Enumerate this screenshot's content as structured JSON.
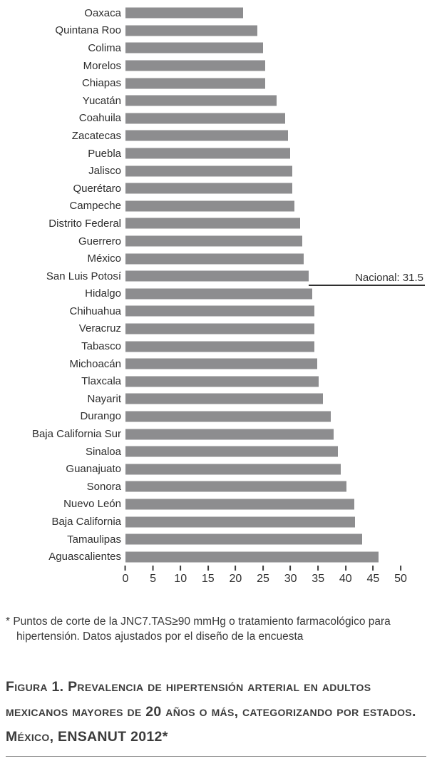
{
  "chart_data": {
    "type": "bar",
    "orientation": "horizontal",
    "title": "",
    "xlabel": "",
    "ylabel": "",
    "xlim": [
      0,
      50
    ],
    "x_ticks": [
      0,
      5,
      10,
      15,
      20,
      25,
      30,
      35,
      40,
      45,
      50
    ],
    "bar_color": "#8d8d8f",
    "grid": false,
    "legend": false,
    "categories": [
      "Oaxaca",
      "Quintana Roo",
      "Colima",
      "Morelos",
      "Chiapas",
      "Yucatán",
      "Coahuila",
      "Zacatecas",
      "Puebla",
      "Jalisco",
      "Querétaro",
      "Campeche",
      "Distrito Federal",
      "Guerrero",
      "México",
      "San Luis Potosí",
      "Hidalgo",
      "Chihuahua",
      "Veracruz",
      "Tabasco",
      "Michoacán",
      "Tlaxcala",
      "Nayarit",
      "Durango",
      "Baja California Sur",
      "Sinaloa",
      "Guanajuato",
      "Sonora",
      "Nuevo León",
      "Baja California",
      "Tamaulipas",
      "Aguascalientes"
    ],
    "values": [
      20.2,
      22.7,
      23.6,
      24.0,
      24.0,
      26.0,
      27.4,
      28.0,
      28.3,
      28.7,
      28.7,
      29.0,
      30.0,
      30.4,
      30.6,
      31.5,
      32.1,
      32.5,
      32.5,
      32.5,
      33.0,
      33.2,
      34.0,
      35.3,
      35.8,
      36.5,
      37.0,
      38.0,
      39.3,
      39.5,
      40.7,
      43.5
    ],
    "reference_line": {
      "label": "Nacional: 31.5",
      "value": 31.5,
      "after_category": "San Luis Potosí"
    }
  },
  "footnote": {
    "text": "* Puntos de corte de la JNC7.TAS≥90 mmHg o tratamiento farmacológico para hipertensión. Datos ajustados por el diseño de la encuesta"
  },
  "caption": {
    "text": "Figura 1. Prevalencia de hipertensión arterial en adultos mexicanos mayores de 20 años o más, categorizando por estados. México, ENSANUT 2012*"
  }
}
